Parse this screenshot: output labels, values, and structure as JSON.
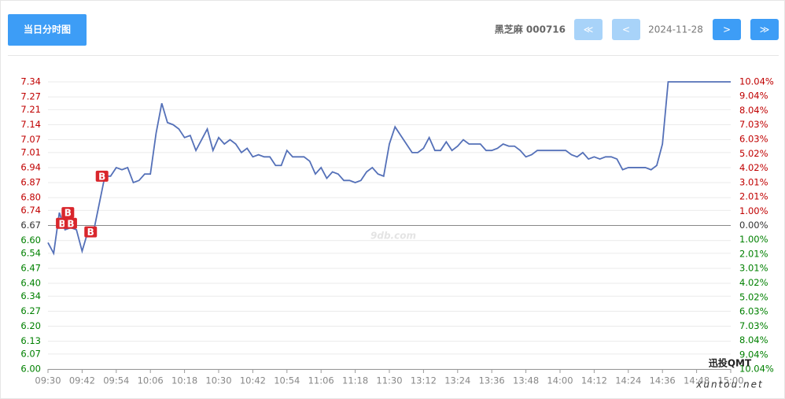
{
  "header": {
    "tab": "当日分时图",
    "stock": "黑芝麻 000716",
    "date": "2024-11-28",
    "nav": {
      "first": "≪",
      "prev": "<",
      "next": ">",
      "last": "≫"
    }
  },
  "watermark": "9db.com",
  "corner_watermark": {
    "title": "迅投QMT",
    "site": "xuntou.net"
  },
  "chart_data": {
    "type": "line",
    "prev_close": 6.67,
    "color": "#5470b8",
    "up_color": "#c00000",
    "down_color": "#008000",
    "grid": true,
    "x": [
      "09:30",
      "09:32",
      "09:34",
      "09:36",
      "09:38",
      "09:40",
      "09:42",
      "09:44",
      "09:46",
      "09:48",
      "09:50",
      "09:52",
      "09:54",
      "09:56",
      "09:58",
      "10:00",
      "10:02",
      "10:04",
      "10:06",
      "10:08",
      "10:10",
      "10:12",
      "10:14",
      "10:16",
      "10:18",
      "10:20",
      "10:22",
      "10:24",
      "10:26",
      "10:28",
      "10:30",
      "10:32",
      "10:34",
      "10:36",
      "10:38",
      "10:40",
      "10:42",
      "10:44",
      "10:46",
      "10:48",
      "10:50",
      "10:52",
      "10:54",
      "10:56",
      "10:58",
      "11:00",
      "11:02",
      "11:04",
      "11:06",
      "11:08",
      "11:10",
      "11:12",
      "11:14",
      "11:16",
      "11:18",
      "11:20",
      "11:22",
      "11:24",
      "11:26",
      "11:28",
      "11:30",
      "13:02",
      "13:04",
      "13:06",
      "13:08",
      "13:10",
      "13:12",
      "13:14",
      "13:16",
      "13:18",
      "13:20",
      "13:22",
      "13:24",
      "13:26",
      "13:28",
      "13:30",
      "13:32",
      "13:34",
      "13:36",
      "13:38",
      "13:40",
      "13:42",
      "13:44",
      "13:46",
      "13:48",
      "13:50",
      "13:52",
      "13:54",
      "13:56",
      "13:58",
      "14:00",
      "14:02",
      "14:04",
      "14:06",
      "14:08",
      "14:10",
      "14:12",
      "14:14",
      "14:16",
      "14:18",
      "14:20",
      "14:22",
      "14:24",
      "14:26",
      "14:28",
      "14:30",
      "14:32",
      "14:34",
      "14:36",
      "14:38",
      "14:40",
      "14:42",
      "14:44",
      "14:46",
      "14:48",
      "14:50",
      "14:52",
      "14:54",
      "14:56",
      "14:58",
      "15:00"
    ],
    "values": [
      6.59,
      6.54,
      6.73,
      6.65,
      6.66,
      6.65,
      6.55,
      6.64,
      6.64,
      6.77,
      6.9,
      6.9,
      6.94,
      6.93,
      6.94,
      6.87,
      6.88,
      6.91,
      6.91,
      7.1,
      7.24,
      7.15,
      7.14,
      7.12,
      7.08,
      7.09,
      7.02,
      7.07,
      7.12,
      7.02,
      7.08,
      7.05,
      7.07,
      7.05,
      7.01,
      7.03,
      6.99,
      7.0,
      6.99,
      6.99,
      6.95,
      6.95,
      7.02,
      6.99,
      6.99,
      6.99,
      6.97,
      6.91,
      6.94,
      6.89,
      6.92,
      6.91,
      6.88,
      6.88,
      6.87,
      6.88,
      6.92,
      6.94,
      6.91,
      6.9,
      7.05,
      7.13,
      7.09,
      7.05,
      7.01,
      7.01,
      7.03,
      7.08,
      7.02,
      7.02,
      7.06,
      7.02,
      7.04,
      7.07,
      7.05,
      7.05,
      7.05,
      7.02,
      7.02,
      7.03,
      7.05,
      7.04,
      7.04,
      7.02,
      6.99,
      7.0,
      7.02,
      7.02,
      7.02,
      7.02,
      7.02,
      7.02,
      7.0,
      6.99,
      7.01,
      6.98,
      6.99,
      6.98,
      6.99,
      6.99,
      6.98,
      6.93,
      6.94,
      6.94,
      6.94,
      6.94,
      6.93,
      6.95,
      7.05,
      7.34,
      7.34,
      7.34,
      7.34,
      7.34,
      7.34,
      7.34,
      7.34,
      7.34,
      7.34,
      7.34,
      7.34
    ],
    "markers": [
      {
        "x": "09:35",
        "value": 6.68,
        "label": "B"
      },
      {
        "x": "09:37",
        "value": 6.73,
        "label": "B"
      },
      {
        "x": "09:38",
        "value": 6.68,
        "label": "B"
      },
      {
        "x": "09:45",
        "value": 6.64,
        "label": "B"
      },
      {
        "x": "09:49",
        "value": 6.9,
        "label": "B"
      }
    ],
    "xticks": [
      "09:30",
      "09:42",
      "09:54",
      "10:06",
      "10:18",
      "10:30",
      "10:42",
      "10:54",
      "11:06",
      "11:18",
      "11:30",
      "13:12",
      "13:24",
      "13:36",
      "13:48",
      "14:00",
      "14:12",
      "14:24",
      "14:36",
      "14:48",
      "15:00"
    ],
    "ylim": [
      6.0,
      7.34
    ],
    "yticks": [
      7.34,
      7.27,
      7.21,
      7.14,
      7.07,
      7.01,
      6.94,
      6.87,
      {
        "value": 6.8,
        "label": "6.80"
      },
      6.74,
      6.67,
      {
        "value": 6.6,
        "label": "6.60"
      },
      6.54,
      6.47,
      {
        "value": 6.4,
        "label": "6.40"
      },
      6.34,
      6.27,
      {
        "value": 6.2,
        "label": "6.20"
      },
      6.13,
      6.07,
      {
        "value": 6.0,
        "label": "6.00"
      }
    ],
    "y2lim": [
      -10.04,
      10.04
    ],
    "y2ticks": [
      {
        "value": 10.04,
        "label": "10.04%"
      },
      {
        "value": 9.04,
        "label": "9.04%"
      },
      {
        "value": 8.04,
        "label": "8.04%"
      },
      {
        "value": 7.03,
        "label": "7.03%"
      },
      {
        "value": 6.03,
        "label": "6.03%"
      },
      {
        "value": 5.02,
        "label": "5.02%"
      },
      {
        "value": 4.02,
        "label": "4.02%"
      },
      {
        "value": 3.01,
        "label": "3.01%"
      },
      {
        "value": 2.01,
        "label": "2.01%"
      },
      {
        "value": 1.0,
        "label": "1.00%"
      },
      {
        "value": 0,
        "label": "0.00%"
      },
      {
        "value": -1.0,
        "label": "1.00%"
      },
      {
        "value": -2.01,
        "label": "2.01%"
      },
      {
        "value": -3.01,
        "label": "3.01%"
      },
      {
        "value": -4.02,
        "label": "4.02%"
      },
      {
        "value": -5.02,
        "label": "5.02%"
      },
      {
        "value": -6.03,
        "label": "6.03%"
      },
      {
        "value": -7.03,
        "label": "7.03%"
      },
      {
        "value": -8.04,
        "label": "8.04%"
      },
      {
        "value": -9.04,
        "label": "9.04%"
      },
      {
        "value": -10.04,
        "label": "10.04%"
      }
    ]
  }
}
